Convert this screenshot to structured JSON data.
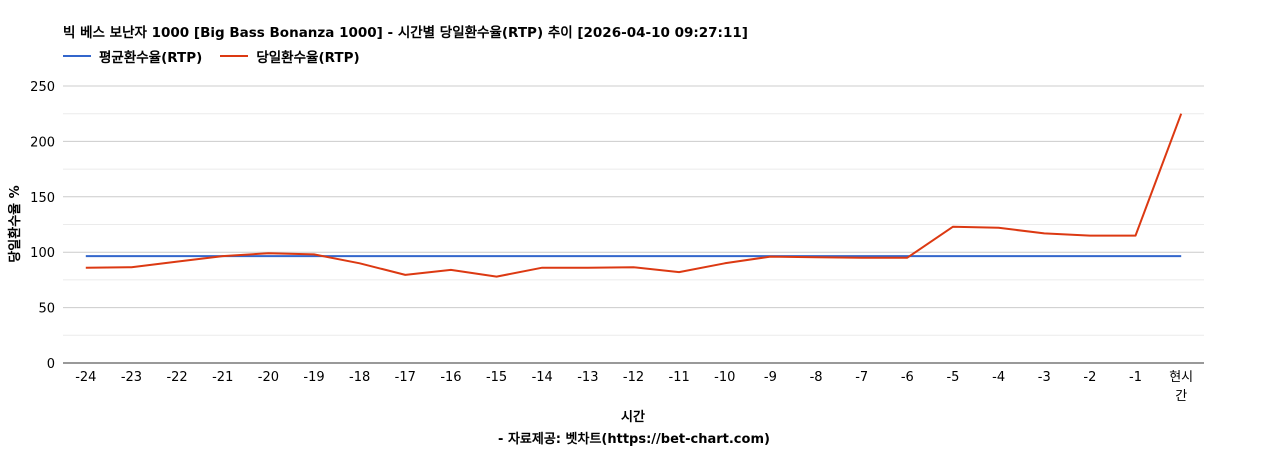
{
  "chart_data": {
    "type": "line",
    "title": "빅 베스 보난자 1000 [Big Bass Bonanza 1000] - 시간별 당일환수율(RTP) 추이 [2026-04-10 09:27:11]",
    "xlabel": "시간",
    "ylabel": "당일환수율 %",
    "source": "- 자료제공: 벳차트(https://bet-chart.com)",
    "ylim": [
      0,
      250
    ],
    "yticks": [
      0,
      50,
      100,
      150,
      200,
      250
    ],
    "grid": true,
    "legend_position": "top-left",
    "categories": [
      "-24",
      "-23",
      "-22",
      "-21",
      "-20",
      "-19",
      "-18",
      "-17",
      "-16",
      "-15",
      "-14",
      "-13",
      "-12",
      "-11",
      "-10",
      "-9",
      "-8",
      "-7",
      "-6",
      "-5",
      "-4",
      "-3",
      "-2",
      "-1",
      "현시간"
    ],
    "series": [
      {
        "name": "평균환수율(RTP)",
        "color": "#3366cc",
        "values": [
          96.5,
          96.5,
          96.5,
          96.5,
          96.5,
          96.5,
          96.5,
          96.5,
          96.5,
          96.5,
          96.5,
          96.5,
          96.5,
          96.5,
          96.5,
          96.5,
          96.5,
          96.5,
          96.5,
          96.5,
          96.5,
          96.5,
          96.5,
          96.5,
          96.5
        ]
      },
      {
        "name": "당일환수율(RTP)",
        "color": "#dc3912",
        "values": [
          86,
          86.5,
          91.5,
          96.5,
          99,
          98,
          90,
          79.5,
          84,
          78,
          86,
          86,
          86.5,
          82,
          90,
          96,
          95.5,
          95,
          95,
          123,
          122,
          117,
          115,
          115,
          225
        ]
      }
    ]
  }
}
